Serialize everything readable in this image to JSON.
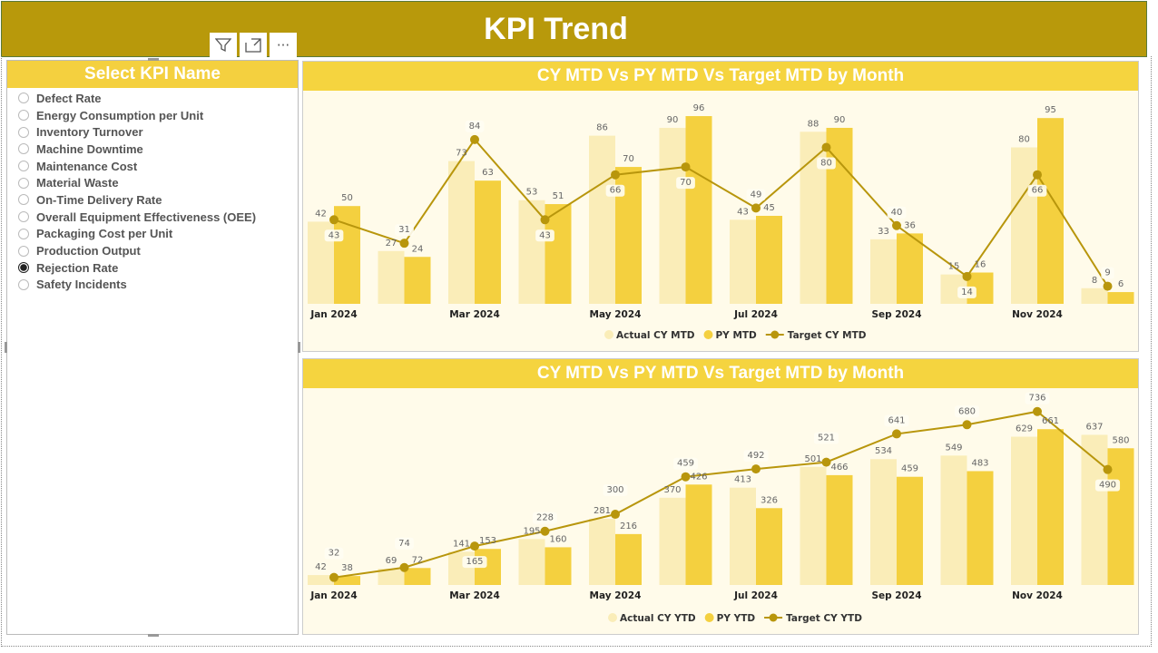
{
  "header": {
    "title": "KPI Trend"
  },
  "toolbar": {
    "filter_icon": "filter-icon",
    "focus_icon": "focus-mode-icon",
    "more_label": "···"
  },
  "slicer": {
    "title": "Select KPI Name",
    "selected": "Rejection Rate",
    "items": [
      "Defect Rate",
      "Energy Consumption per Unit",
      "Inventory Turnover",
      "Machine Downtime",
      "Maintenance Cost",
      "Material Waste",
      "On-Time Delivery Rate",
      "Overall Equipment Effectiveness (OEE)",
      "Packaging Cost per Unit",
      "Production Output",
      "Rejection Rate",
      "Safety Incidents"
    ]
  },
  "colors": {
    "header": "#b8990b",
    "actual": "#faedb8",
    "py": "#f4d03f",
    "target": "#b8960c"
  },
  "chart_data": [
    {
      "type": "bar",
      "title": "CY MTD Vs PY MTD Vs Target MTD by Month",
      "categories": [
        "Jan 2024",
        "Feb 2024",
        "Mar 2024",
        "Apr 2024",
        "May 2024",
        "Jun 2024",
        "Jul 2024",
        "Aug 2024",
        "Sep 2024",
        "Oct 2024",
        "Nov 2024",
        "Dec 2024"
      ],
      "tick_labels": [
        "Jan 2024",
        "",
        "Mar 2024",
        "",
        "May 2024",
        "",
        "Jul 2024",
        "",
        "Sep 2024",
        "",
        "Nov 2024",
        ""
      ],
      "ylim": [
        0,
        109
      ],
      "legend_position": "bottom",
      "series": [
        {
          "name": "Actual CY MTD",
          "kind": "bar",
          "values": [
            42,
            27,
            73,
            53,
            86,
            90,
            43,
            88,
            33,
            15,
            80,
            8
          ]
        },
        {
          "name": "PY MTD",
          "kind": "bar",
          "values": [
            50,
            24,
            63,
            51,
            70,
            96,
            45,
            90,
            36,
            16,
            95,
            6
          ]
        },
        {
          "name": "Target CY MTD",
          "kind": "line",
          "values": [
            43,
            31,
            84,
            43,
            66,
            70,
            49,
            80,
            40,
            14,
            66,
            9
          ]
        }
      ]
    },
    {
      "type": "bar",
      "title": "CY MTD Vs PY MTD Vs Target MTD by Month",
      "categories": [
        "Jan 2024",
        "Feb 2024",
        "Mar 2024",
        "Apr 2024",
        "May 2024",
        "Jun 2024",
        "Jul 2024",
        "Aug 2024",
        "Sep 2024",
        "Oct 2024",
        "Nov 2024",
        "Dec 2024"
      ],
      "tick_labels": [
        "Jan 2024",
        "",
        "Mar 2024",
        "",
        "May 2024",
        "",
        "Jul 2024",
        "",
        "Sep 2024",
        "",
        "Nov 2024",
        ""
      ],
      "ylim": [
        0,
        835
      ],
      "legend_position": "bottom",
      "series": [
        {
          "name": "Actual CY YTD",
          "kind": "bar",
          "values": [
            42,
            69,
            141,
            195,
            281,
            370,
            413,
            501,
            534,
            549,
            629,
            637
          ]
        },
        {
          "name": "PY YTD",
          "kind": "bar",
          "values": [
            38,
            72,
            153,
            160,
            216,
            426,
            326,
            466,
            459,
            483,
            661,
            580
          ]
        },
        {
          "name": "Target CY YTD",
          "kind": "line",
          "values": [
            32,
            74,
            165,
            228,
            300,
            459,
            492,
            521,
            641,
            680,
            736,
            490
          ]
        }
      ]
    }
  ]
}
